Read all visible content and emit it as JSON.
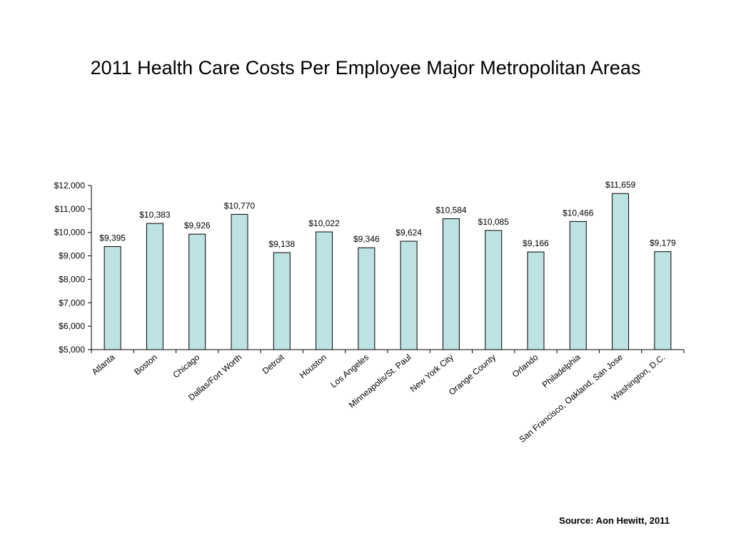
{
  "page": {
    "title": "2011 Health Care Costs Per Employee Major Metropolitan Areas",
    "source": "Source: Aon Hewitt, 2011"
  },
  "colors": {
    "bar_fill": "#bde2e3",
    "bar_stroke": "#000000",
    "axis": "#000000"
  },
  "chart_data": {
    "type": "bar",
    "title": "2011 Health Care Costs Per Employee Major Metropolitan Areas",
    "xlabel": "",
    "ylabel": "",
    "ylim": [
      5000,
      12000
    ],
    "yticks": [
      5000,
      6000,
      7000,
      8000,
      9000,
      10000,
      11000,
      12000
    ],
    "ytick_labels": [
      "$5,000",
      "$6,000",
      "$7,000",
      "$8,000",
      "$9,000",
      "$10,000",
      "$11,000",
      "$12,000"
    ],
    "grid": false,
    "legend": "none",
    "categories": [
      "Atlanta",
      "Boston",
      "Chicago",
      "Dallas/Fort Worth",
      "Detroit",
      "Houston",
      "Los Angeles",
      "Minneapolis/St. Paul",
      "New York City",
      "Orange County",
      "Orlando",
      "Philadelphia",
      "San Francisco, Oakland, San Jose",
      "Washington, D.C."
    ],
    "values": [
      9395,
      10383,
      9926,
      10770,
      9138,
      10022,
      9346,
      9624,
      10584,
      10085,
      9166,
      10466,
      11659,
      9179
    ],
    "data_labels": [
      "$9,395",
      "$10,383",
      "$9,926",
      "$10,770",
      "$9,138",
      "$10,022",
      "$9,346",
      "$9,624",
      "$10,584",
      "$10,085",
      "$9,166",
      "$10,466",
      "$11,659",
      "$9,179"
    ]
  }
}
